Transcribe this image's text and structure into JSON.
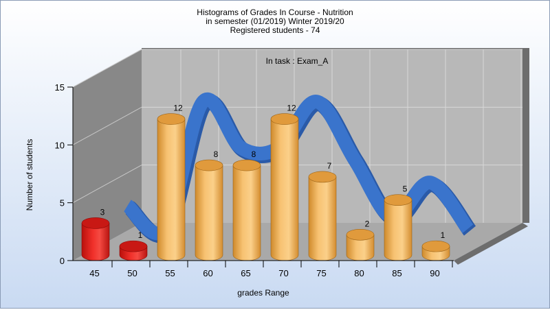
{
  "chart_data": {
    "type": "bar",
    "title_lines": [
      "Histograms of Grades  In Course - Nutrition",
      "in semester  (01/2019) Winter 2019/20",
      "Registered students - 74"
    ],
    "subtitle": "In task : Exam_A",
    "xlabel": "grades Range",
    "ylabel": "Number of students",
    "x_ticks": [
      "45",
      "50",
      "55",
      "60",
      "65",
      "70",
      "75",
      "80",
      "85",
      "90"
    ],
    "y_ticks": [
      0,
      5,
      10,
      15
    ],
    "ylim": [
      0,
      15
    ],
    "categories": [
      "45-50",
      "50-55",
      "55-60",
      "60-65",
      "65-70",
      "70-75",
      "75-80",
      "80-85",
      "85-90",
      "90-95"
    ],
    "values": [
      3,
      1,
      12,
      8,
      8,
      12,
      7,
      2,
      5,
      1
    ],
    "value_labels": [
      "3",
      "1",
      "12",
      "8",
      "8",
      "12",
      "7",
      "2",
      "5",
      "1"
    ],
    "bar_colors": [
      "#e0201c",
      "#e0201c",
      "#f0b050",
      "#f0b050",
      "#f0b050",
      "#f0b050",
      "#f0b050",
      "#f0b050",
      "#f0b050",
      "#f0b050"
    ],
    "trend_line": true,
    "trend_color": "#3a74cc",
    "grid": true,
    "legend": "none",
    "style": "3d"
  }
}
